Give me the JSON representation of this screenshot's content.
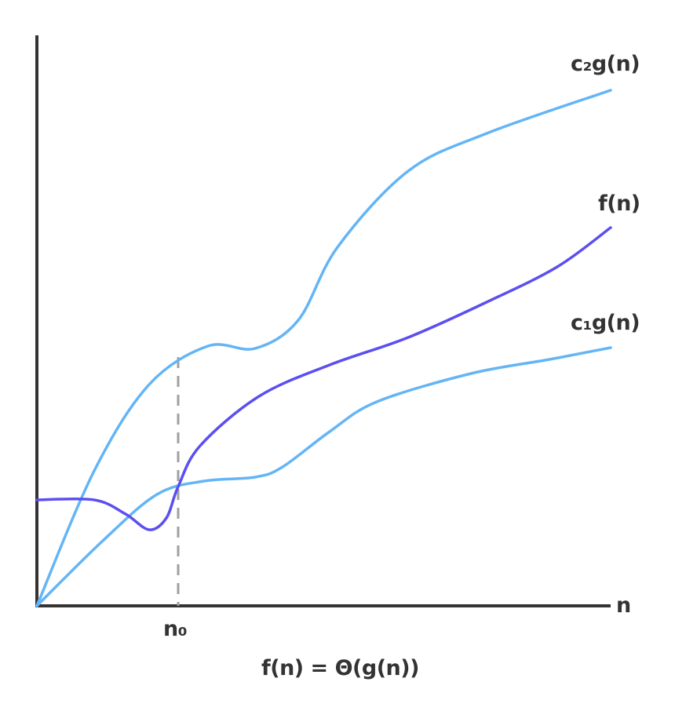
{
  "title": "f(n) = Θ(g(n))",
  "axes": {
    "x_label": "n",
    "threshold_label": "n₀"
  },
  "curves": [
    {
      "id": "c2g",
      "label": "c₂g(n)",
      "color": "#64b5f6"
    },
    {
      "id": "f",
      "label": "f(n)",
      "color": "#5b4ff0"
    },
    {
      "id": "c1g",
      "label": "c₁g(n)",
      "color": "#64b5f6"
    }
  ],
  "colors": {
    "axis": "#333333",
    "threshold": "#a0a0a0"
  }
}
